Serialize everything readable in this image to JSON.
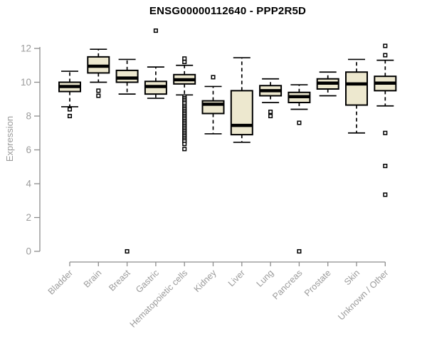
{
  "chart_data": {
    "type": "boxplot",
    "title": "ENSG00000112640 - PPP2R5D",
    "ylabel": "Expression",
    "xlabel": "",
    "ylim": [
      0,
      13.4
    ],
    "yticks": [
      0,
      2,
      4,
      6,
      8,
      10,
      12
    ],
    "grid": false,
    "legend": "none",
    "categories": [
      "Bladder",
      "Brain",
      "Breast",
      "Gastric",
      "Hematopoietic cells",
      "Kidney",
      "Liver",
      "Lung",
      "Pancreas",
      "Prostate",
      "Skin",
      "Unknown / Other"
    ],
    "series": [
      {
        "name": "Bladder",
        "whisker_low": 8.55,
        "q1": 9.45,
        "median": 9.75,
        "q3": 10.0,
        "whisker_high": 10.65,
        "outliers": [
          8.4,
          8.0
        ]
      },
      {
        "name": "Brain",
        "whisker_low": 10.0,
        "q1": 10.55,
        "median": 10.95,
        "q3": 11.5,
        "whisker_high": 11.95,
        "outliers": [
          9.5,
          9.2
        ]
      },
      {
        "name": "Breast",
        "whisker_low": 9.3,
        "q1": 10.0,
        "median": 10.25,
        "q3": 10.7,
        "whisker_high": 11.35,
        "outliers": [
          0
        ]
      },
      {
        "name": "Gastric",
        "whisker_low": 9.05,
        "q1": 9.3,
        "median": 9.75,
        "q3": 10.05,
        "whisker_high": 10.9,
        "outliers": [
          13.05
        ]
      },
      {
        "name": "Hematopoietic cells",
        "whisker_low": 9.25,
        "q1": 9.9,
        "median": 10.15,
        "q3": 10.45,
        "whisker_high": 11.0,
        "outliers": [
          11.4,
          11.2,
          9.15,
          9.05,
          8.95,
          8.85,
          8.75,
          8.6,
          8.5,
          8.4,
          8.3,
          8.2,
          8.1,
          8.0,
          7.9,
          7.8,
          7.7,
          7.6,
          7.5,
          7.4,
          7.3,
          7.2,
          7.1,
          7.0,
          6.9,
          6.8,
          6.7,
          6.6,
          6.5,
          6.35,
          6.05
        ]
      },
      {
        "name": "Kidney",
        "whisker_low": 6.95,
        "q1": 8.15,
        "median": 8.7,
        "q3": 8.9,
        "whisker_high": 9.75,
        "outliers": [
          10.3
        ]
      },
      {
        "name": "Liver",
        "whisker_low": 6.45,
        "q1": 6.9,
        "median": 7.45,
        "q3": 9.5,
        "whisker_high": 11.45,
        "outliers": []
      },
      {
        "name": "Lung",
        "whisker_low": 8.8,
        "q1": 9.2,
        "median": 9.5,
        "q3": 9.8,
        "whisker_high": 10.2,
        "outliers": [
          8.25,
          8.0
        ]
      },
      {
        "name": "Pancreas",
        "whisker_low": 8.4,
        "q1": 8.8,
        "median": 9.15,
        "q3": 9.4,
        "whisker_high": 9.85,
        "outliers": [
          7.6,
          0
        ]
      },
      {
        "name": "Prostate",
        "whisker_low": 9.2,
        "q1": 9.6,
        "median": 9.95,
        "q3": 10.2,
        "whisker_high": 10.6,
        "outliers": []
      },
      {
        "name": "Skin",
        "whisker_low": 7.0,
        "q1": 8.65,
        "median": 9.9,
        "q3": 10.6,
        "whisker_high": 11.35,
        "outliers": []
      },
      {
        "name": "Unknown / Other",
        "whisker_low": 8.6,
        "q1": 9.5,
        "median": 9.95,
        "q3": 10.35,
        "whisker_high": 11.3,
        "outliers": [
          12.15,
          11.6,
          7.0,
          5.05,
          3.35
        ]
      }
    ],
    "colors": {
      "box_fill": "#EDE8CF",
      "box_stroke": "#000000",
      "median": "#000000",
      "outlier_stroke": "#000000",
      "axis": "#8c8c8c",
      "tick_label": "#9b9b9b",
      "title": "#000000",
      "background": "#ffffff"
    }
  }
}
